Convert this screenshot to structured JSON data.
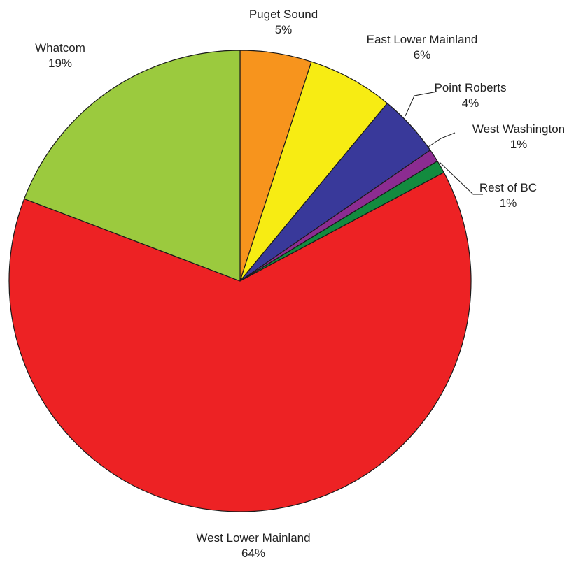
{
  "chart_data": {
    "type": "pie",
    "title": "",
    "start": "12 o'clock",
    "direction": "clockwise",
    "slices": [
      {
        "name": "Puget Sound",
        "pct_label": "5%",
        "value": 5.0,
        "color": "#F7941D"
      },
      {
        "name": "East Lower Mainland",
        "pct_label": "6%",
        "value": 6.0,
        "color": "#F7EC13"
      },
      {
        "name": "Point Roberts",
        "pct_label": "4%",
        "value": 4.4,
        "color": "#39399A"
      },
      {
        "name": "West Washington",
        "pct_label": "1%",
        "value": 0.9,
        "color": "#8C2C91"
      },
      {
        "name": "Rest of BC",
        "pct_label": "1%",
        "value": 0.9,
        "color": "#138B3F"
      },
      {
        "name": "West Lower Mainland",
        "pct_label": "64%",
        "value": 63.6,
        "color": "#ED2224"
      },
      {
        "name": "Whatcom",
        "pct_label": "19%",
        "value": 19.2,
        "color": "#9BCA3E"
      }
    ]
  }
}
